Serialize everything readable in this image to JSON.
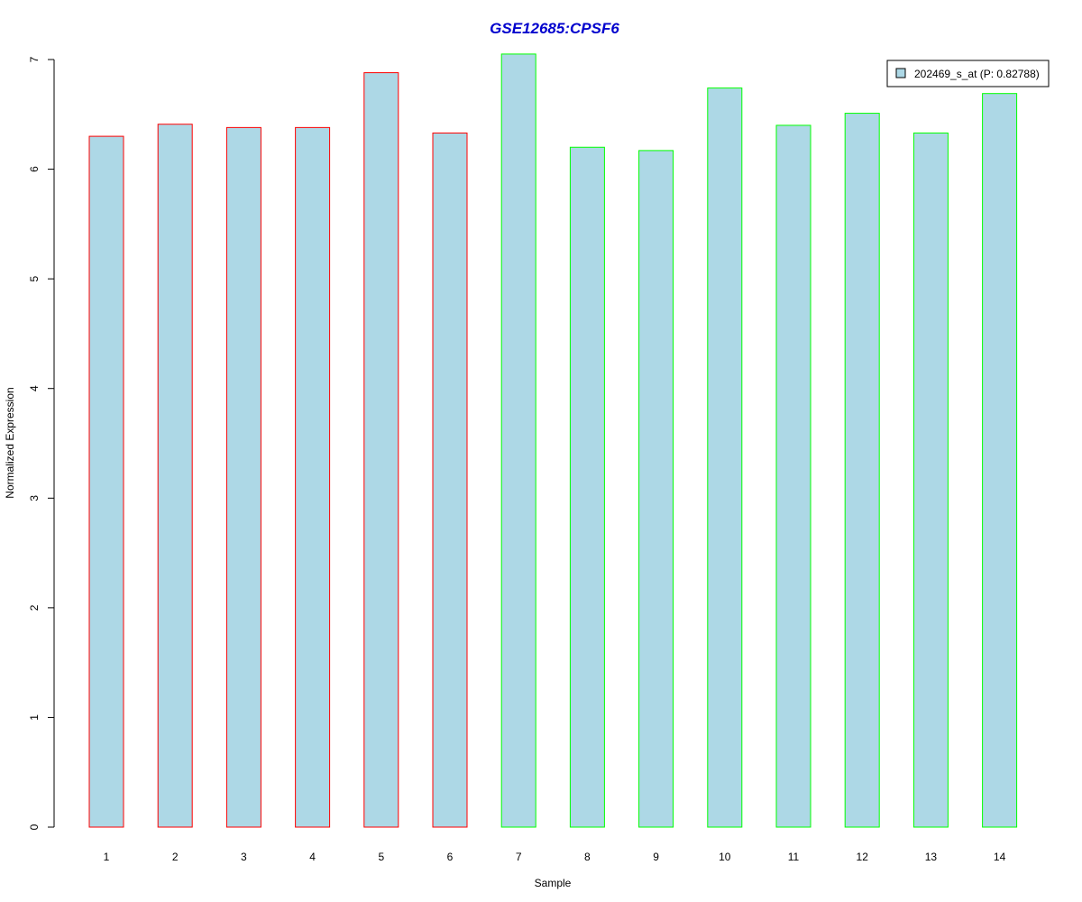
{
  "chart_data": {
    "type": "bar",
    "title": "GSE12685:CPSF6",
    "xlabel": "Sample",
    "ylabel": "Normalized Expression",
    "categories": [
      "1",
      "2",
      "3",
      "4",
      "5",
      "6",
      "7",
      "8",
      "9",
      "10",
      "11",
      "12",
      "13",
      "14"
    ],
    "series": [
      {
        "name": "202469_s_at (P: 0.82788)",
        "values": [
          6.3,
          6.41,
          6.38,
          6.38,
          6.88,
          6.33,
          7.05,
          6.2,
          6.17,
          6.74,
          6.4,
          6.51,
          6.33,
          6.69
        ]
      }
    ],
    "border_colors": [
      "#ff0000",
      "#ff0000",
      "#ff0000",
      "#ff0000",
      "#ff0000",
      "#ff0000",
      "#00ff00",
      "#00ff00",
      "#00ff00",
      "#00ff00",
      "#00ff00",
      "#00ff00",
      "#00ff00",
      "#00ff00"
    ],
    "fill_color": "#add8e6",
    "title_color": "#0000cd",
    "ylim": [
      0,
      7
    ],
    "yticks": [
      "0",
      "1",
      "2",
      "3",
      "4",
      "5",
      "6",
      "7"
    ],
    "grid": false,
    "legend_position": "top-right"
  }
}
